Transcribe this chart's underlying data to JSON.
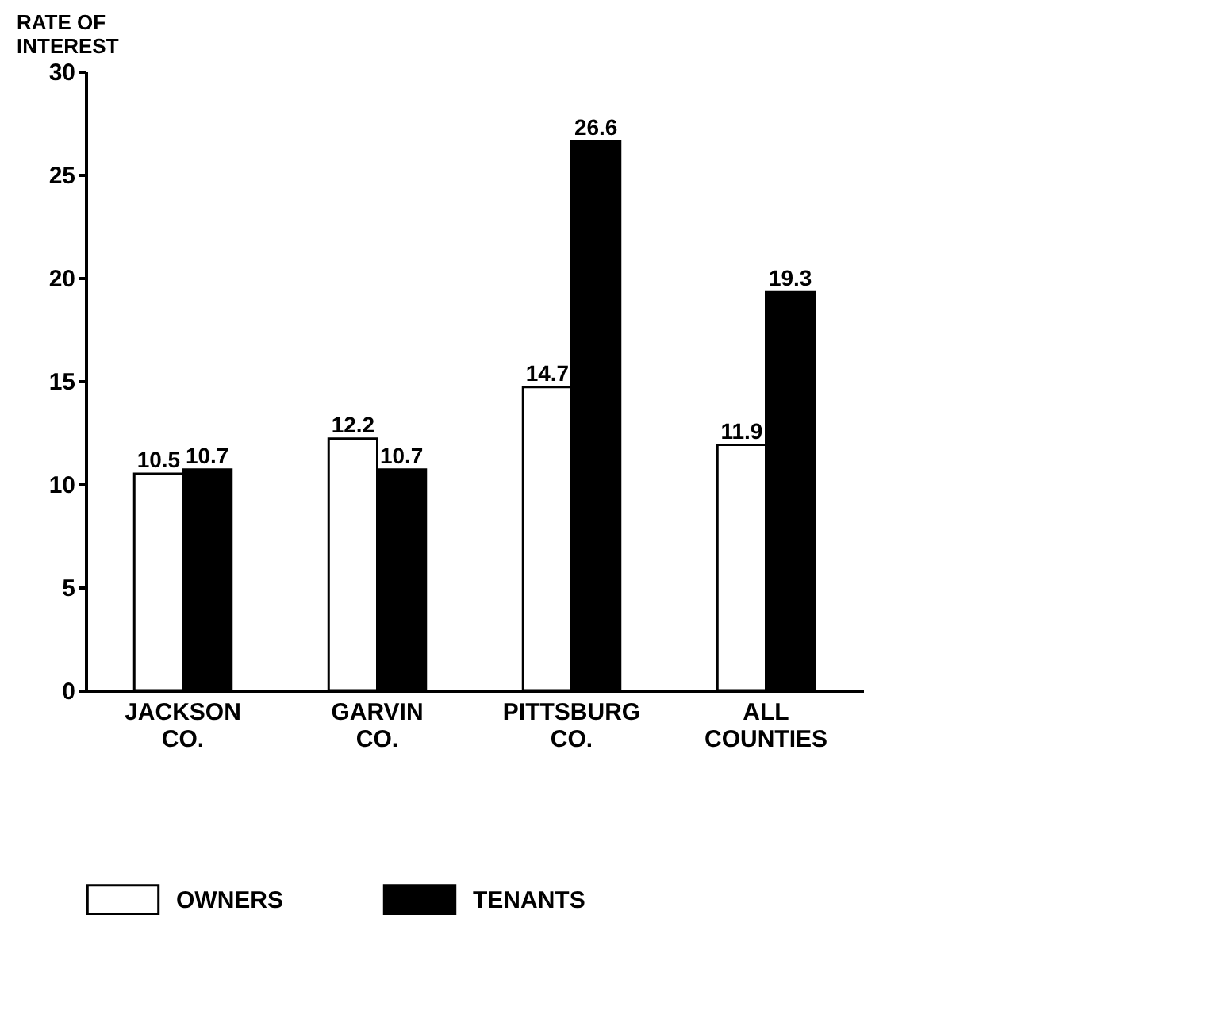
{
  "chart_data": {
    "type": "bar",
    "ylabel": "RATE OF INTEREST",
    "categories": [
      "JACKSON CO.",
      "GARVIN CO.",
      "PITTSBURG CO.",
      "ALL COUNTIES"
    ],
    "series": [
      {
        "name": "OWNERS",
        "color": "#ffffff",
        "values": [
          10.5,
          12.2,
          14.7,
          11.9
        ]
      },
      {
        "name": "TENANTS",
        "color": "#000000",
        "values": [
          10.7,
          10.7,
          26.6,
          19.3
        ]
      }
    ],
    "ylim": [
      0,
      30
    ],
    "yticks": [
      0,
      5,
      10,
      15,
      20,
      25,
      30
    ],
    "grid": false,
    "legend": "bottom",
    "data_labels": true
  }
}
